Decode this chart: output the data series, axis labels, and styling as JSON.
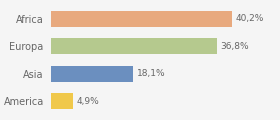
{
  "categories": [
    "America",
    "Asia",
    "Europa",
    "Africa"
  ],
  "values": [
    4.9,
    18.1,
    36.8,
    40.2
  ],
  "bar_colors": [
    "#f0c84a",
    "#6b8fbf",
    "#b5c98e",
    "#e8a97e"
  ],
  "labels": [
    "4,9%",
    "18,1%",
    "36,8%",
    "40,2%"
  ],
  "background_color": "#f5f5f5",
  "xlim": [
    0,
    50
  ],
  "bar_height": 0.58
}
